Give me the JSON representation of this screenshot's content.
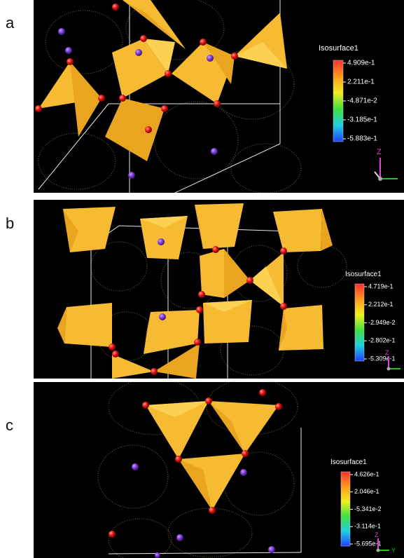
{
  "panels": [
    {
      "label": "a",
      "legend": {
        "title": "Isosurface1",
        "ticks": [
          "4.909e-1",
          "2.211e-1",
          "-4.871e-2",
          "-3.185e-1",
          "-5.883e-1"
        ]
      },
      "axes": [
        "Z"
      ]
    },
    {
      "label": "b",
      "legend": {
        "title": "Isosurface1",
        "ticks": [
          "4.719e-1",
          "2.212e-1",
          "-2.949e-2",
          "-2.802e-1",
          "-5.309e-1"
        ]
      },
      "axes": [
        "Z"
      ]
    },
    {
      "label": "c",
      "legend": {
        "title": "Isosurface1",
        "ticks": [
          "4.626e-1",
          "2.046e-1",
          "-5.341e-2",
          "-3.114e-1",
          "-5.695e-1"
        ]
      },
      "axes": [
        "Z",
        "Y"
      ]
    }
  ]
}
